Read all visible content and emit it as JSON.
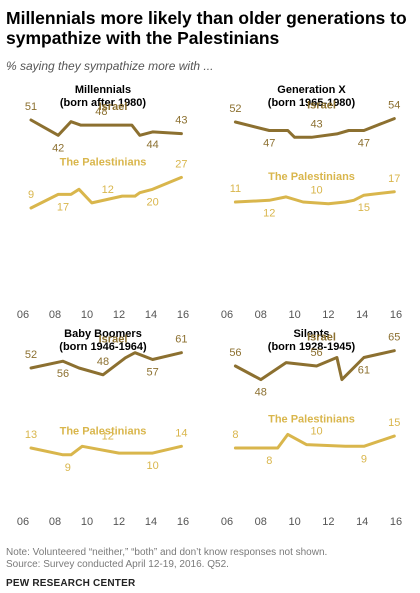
{
  "title": "Millennials more likely than older generations to sympathize with the Palestinians",
  "subtitle": "% saying they sympathize more with ...",
  "colors": {
    "israel": "#8C7030",
    "palestinians": "#D9B64C",
    "text": "#000000",
    "axis": "#555555"
  },
  "chart_data": [
    {
      "type": "line",
      "title": "Millennials",
      "subtitle": "(born after 1980)",
      "x_tick_labels": [
        "06",
        "08",
        "10",
        "12",
        "14",
        "16"
      ],
      "xlim": [
        2006,
        2016
      ],
      "series": [
        {
          "name": "Israel",
          "color": "#8C7030",
          "points": [
            [
              2006.5,
              51
            ],
            [
              2008.2,
              42
            ],
            [
              2009.0,
              50
            ],
            [
              2009.6,
              48
            ],
            [
              2012.8,
              48
            ],
            [
              2013.3,
              42
            ],
            [
              2014.1,
              44
            ],
            [
              2015.9,
              43
            ]
          ],
          "labels": [
            {
              "value": 51,
              "x": 2006.5
            },
            {
              "value": 42,
              "x": 2008.2
            },
            {
              "value": 48,
              "x": 2010.9
            },
            {
              "value": 44,
              "x": 2014.1
            },
            {
              "value": 43,
              "x": 2015.9
            }
          ]
        },
        {
          "name": "The Palestinians",
          "color": "#D9B64C",
          "points": [
            [
              2006.5,
              9
            ],
            [
              2008.2,
              17
            ],
            [
              2009.0,
              17
            ],
            [
              2009.5,
              20
            ],
            [
              2010.3,
              12
            ],
            [
              2012.2,
              16
            ],
            [
              2013.0,
              16
            ],
            [
              2013.3,
              18
            ],
            [
              2014.1,
              20
            ],
            [
              2015.9,
              27
            ]
          ],
          "labels": [
            {
              "value": 9,
              "x": 2006.5
            },
            {
              "value": 17,
              "x": 2008.5
            },
            {
              "value": 12,
              "x": 2011.3
            },
            {
              "value": 20,
              "x": 2014.1
            },
            {
              "value": 27,
              "x": 2015.9
            }
          ]
        }
      ]
    },
    {
      "type": "line",
      "title": "Generation X",
      "subtitle": "(born 1965-1980)",
      "x_tick_labels": [
        "06",
        "08",
        "10",
        "12",
        "14",
        "16"
      ],
      "xlim": [
        2006,
        2016
      ],
      "series": [
        {
          "name": "Israel",
          "color": "#8C7030",
          "points": [
            [
              2006.5,
              52
            ],
            [
              2008.5,
              47
            ],
            [
              2009.6,
              47
            ],
            [
              2010.0,
              43
            ],
            [
              2011.0,
              43
            ],
            [
              2012.5,
              45
            ],
            [
              2013.2,
              47
            ],
            [
              2014.1,
              47
            ],
            [
              2015.9,
              54
            ]
          ],
          "labels": [
            {
              "value": 52,
              "x": 2006.5
            },
            {
              "value": 47,
              "x": 2008.5
            },
            {
              "value": 43,
              "x": 2011.3
            },
            {
              "value": 47,
              "x": 2014.1
            },
            {
              "value": 54,
              "x": 2015.9
            }
          ]
        },
        {
          "name": "The Palestinians",
          "color": "#D9B64C",
          "points": [
            [
              2006.5,
              11
            ],
            [
              2008.5,
              12
            ],
            [
              2009.5,
              14
            ],
            [
              2010.5,
              11
            ],
            [
              2012.0,
              10
            ],
            [
              2013.0,
              11
            ],
            [
              2013.5,
              12
            ],
            [
              2014.1,
              15
            ],
            [
              2015.9,
              17
            ]
          ],
          "labels": [
            {
              "value": 11,
              "x": 2006.5
            },
            {
              "value": 12,
              "x": 2008.5
            },
            {
              "value": 10,
              "x": 2011.3
            },
            {
              "value": 15,
              "x": 2014.1
            },
            {
              "value": 17,
              "x": 2015.9
            }
          ]
        }
      ]
    },
    {
      "type": "line",
      "title": "Baby Boomers",
      "subtitle": "(born 1946-1964)",
      "x_tick_labels": [
        "06",
        "08",
        "10",
        "12",
        "14",
        "16"
      ],
      "xlim": [
        2006,
        2016
      ],
      "series": [
        {
          "name": "Israel",
          "color": "#8C7030",
          "points": [
            [
              2006.5,
              52
            ],
            [
              2008.5,
              56
            ],
            [
              2009.5,
              52
            ],
            [
              2011.0,
              48
            ],
            [
              2012.4,
              58
            ],
            [
              2013.0,
              61
            ],
            [
              2014.1,
              57
            ],
            [
              2015.9,
              61
            ]
          ],
          "labels": [
            {
              "value": 52,
              "x": 2006.5
            },
            {
              "value": 56,
              "x": 2008.5
            },
            {
              "value": 48,
              "x": 2011.0
            },
            {
              "value": 57,
              "x": 2014.1
            },
            {
              "value": 61,
              "x": 2015.9
            }
          ]
        },
        {
          "name": "The Palestinians",
          "color": "#D9B64C",
          "points": [
            [
              2006.5,
              13
            ],
            [
              2008.5,
              9
            ],
            [
              2009.0,
              9
            ],
            [
              2009.7,
              14
            ],
            [
              2012.0,
              10
            ],
            [
              2013.0,
              10
            ],
            [
              2014.1,
              10
            ],
            [
              2015.9,
              14
            ]
          ],
          "labels": [
            {
              "value": 13,
              "x": 2006.5
            },
            {
              "value": 9,
              "x": 2008.8
            },
            {
              "value": 12,
              "x": 2011.3
            },
            {
              "value": 10,
              "x": 2014.1
            },
            {
              "value": 14,
              "x": 2015.9
            }
          ]
        }
      ]
    },
    {
      "type": "line",
      "title": "Silents",
      "subtitle": "(born 1928-1945)",
      "x_tick_labels": [
        "06",
        "08",
        "10",
        "12",
        "14",
        "16"
      ],
      "xlim": [
        2006,
        2016
      ],
      "series": [
        {
          "name": "Israel",
          "color": "#8C7030",
          "points": [
            [
              2006.5,
              56
            ],
            [
              2008.0,
              48
            ],
            [
              2009.5,
              58
            ],
            [
              2011.3,
              56
            ],
            [
              2012.5,
              61
            ],
            [
              2012.8,
              48
            ],
            [
              2014.1,
              61
            ],
            [
              2015.9,
              65
            ]
          ],
          "labels": [
            {
              "value": 56,
              "x": 2006.5
            },
            {
              "value": 48,
              "x": 2008.0
            },
            {
              "value": 56,
              "x": 2011.3
            },
            {
              "value": 61,
              "x": 2014.1
            },
            {
              "value": 65,
              "x": 2015.9
            }
          ]
        },
        {
          "name": "The Palestinians",
          "color": "#D9B64C",
          "points": [
            [
              2006.5,
              8
            ],
            [
              2008.5,
              8
            ],
            [
              2009.0,
              8
            ],
            [
              2009.6,
              16
            ],
            [
              2010.7,
              10
            ],
            [
              2013.0,
              9
            ],
            [
              2014.1,
              9
            ],
            [
              2015.9,
              15
            ]
          ],
          "labels": [
            {
              "value": 8,
              "x": 2006.5
            },
            {
              "value": 8,
              "x": 2008.5
            },
            {
              "value": 10,
              "x": 2011.3
            },
            {
              "value": 9,
              "x": 2014.1
            },
            {
              "value": 15,
              "x": 2015.9
            }
          ]
        }
      ]
    }
  ],
  "footer": {
    "note": "Note: Volunteered “neither,” “both” and don’t know responses not shown.",
    "source": "Source: Survey conducted April 12-19, 2016. Q52.",
    "brand": "PEW RESEARCH CENTER"
  }
}
